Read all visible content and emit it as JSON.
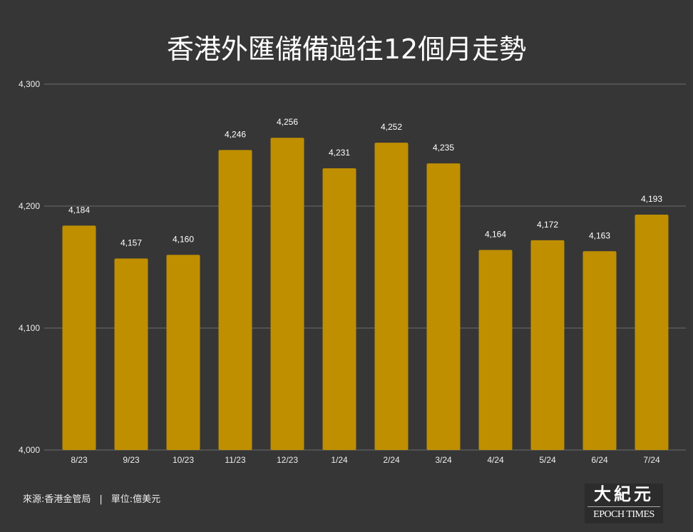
{
  "chart_data": {
    "type": "bar",
    "title": "香港外匯儲備過往12個月走勢",
    "categories": [
      "8/23",
      "9/23",
      "10/23",
      "11/23",
      "12/23",
      "1/24",
      "2/24",
      "3/24",
      "4/24",
      "5/24",
      "6/24",
      "7/24"
    ],
    "values": [
      4184,
      4157,
      4160,
      4246,
      4256,
      4231,
      4252,
      4235,
      4164,
      4172,
      4163,
      4193
    ],
    "value_labels": [
      "4,184",
      "4,157",
      "4,160",
      "4,246",
      "4,256",
      "4,231",
      "4,252",
      "4,235",
      "4,164",
      "4,172",
      "4,163",
      "4,193"
    ],
    "ylim": [
      4000,
      4300
    ],
    "yticks": [
      4000,
      4100,
      4200,
      4300
    ],
    "ytick_labels": [
      "4,000",
      "4,100",
      "4,200",
      "4,300"
    ],
    "xlabel": "",
    "ylabel": "",
    "grid": true,
    "bar_color": "#bf8f00"
  },
  "footer": {
    "source": "來源:香港金管局",
    "separator": "|",
    "unit": "單位:億美元"
  },
  "logo": {
    "cn": "大紀元",
    "en": "EPOCH TIMES"
  }
}
